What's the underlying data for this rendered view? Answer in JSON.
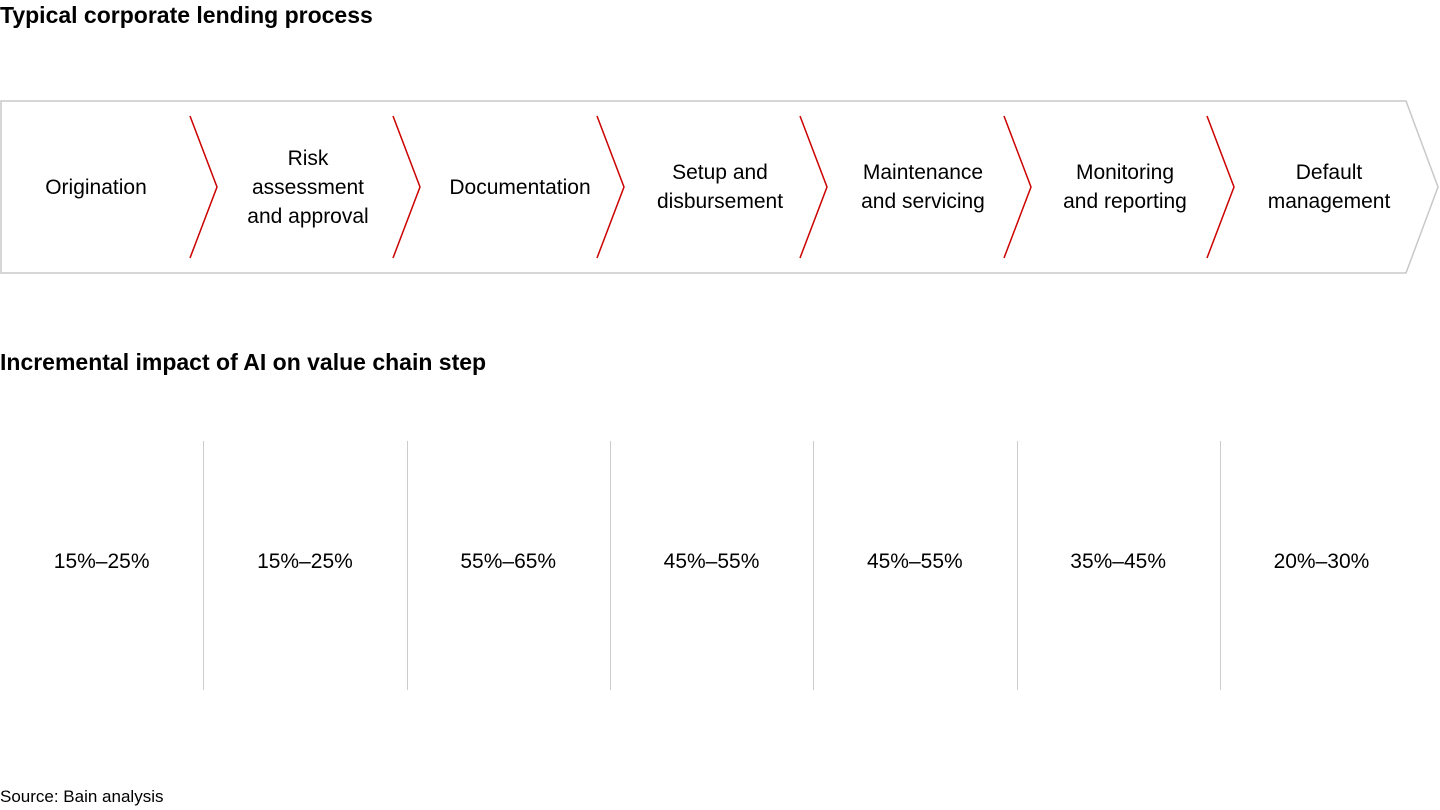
{
  "title": "Typical corporate lending process",
  "subtitle": "Incremental impact of AI on value chain step",
  "source": "Source: Bain analysis",
  "colors": {
    "chevron_outline": "#c8c8c8",
    "separator_accent": "#cc0000",
    "divider": "#cccccc"
  },
  "steps": [
    {
      "lines": [
        "Origination"
      ],
      "impact": "15%–25%"
    },
    {
      "lines": [
        "Risk",
        "assessment",
        "and approval"
      ],
      "impact": "15%–25%"
    },
    {
      "lines": [
        "Documentation"
      ],
      "impact": "55%–65%"
    },
    {
      "lines": [
        "Setup and",
        "disbursement"
      ],
      "impact": "45%–55%"
    },
    {
      "lines": [
        "Maintenance",
        "and servicing"
      ],
      "impact": "45%–55%"
    },
    {
      "lines": [
        "Monitoring",
        "and reporting"
      ],
      "impact": "35%–45%"
    },
    {
      "lines": [
        "Default",
        "management"
      ],
      "impact": "20%–30%"
    }
  ]
}
